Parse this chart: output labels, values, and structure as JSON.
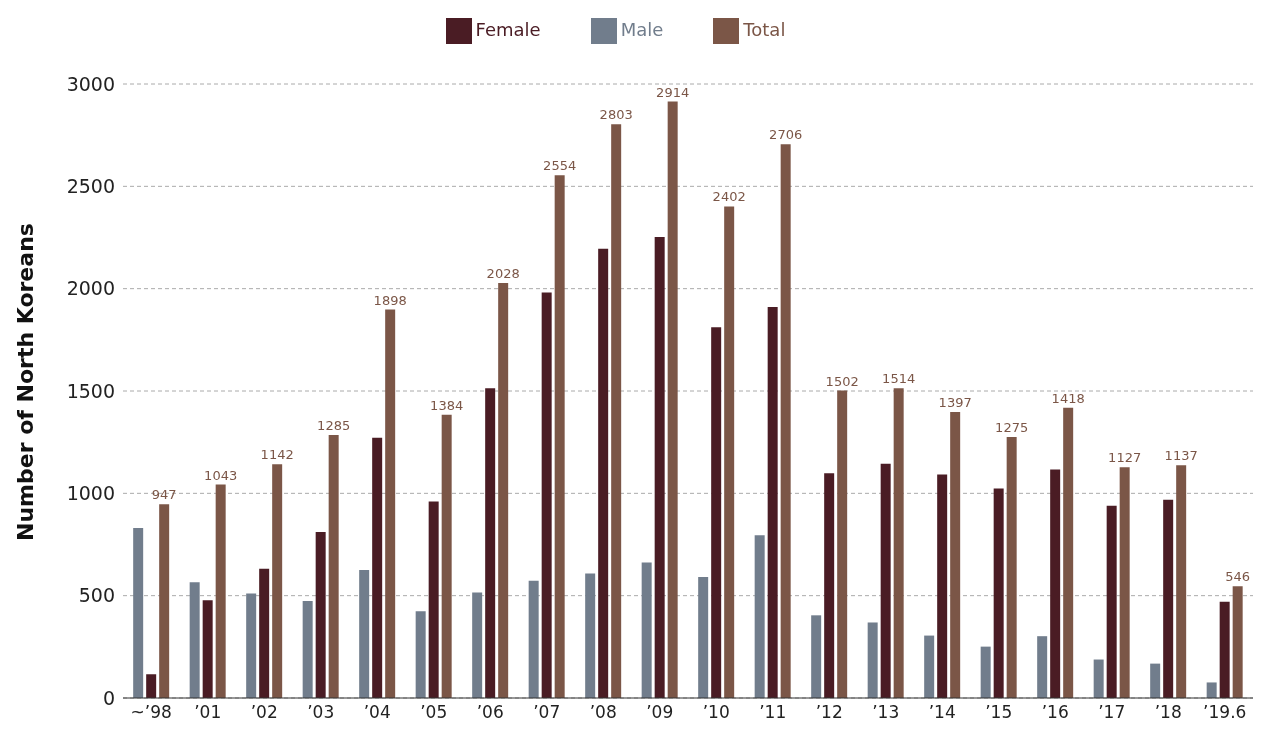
{
  "chart_data": {
    "type": "bar",
    "ylabel": "Number of North Koreans",
    "categories": [
      "~’98",
      "’01",
      "’02",
      "’03",
      "’04",
      "’05",
      "’06",
      "’07",
      "’08",
      "’09",
      "’10",
      "’11",
      "’12",
      "’13",
      "’14",
      "’15",
      "’16",
      "’17",
      "’18",
      "’19.6"
    ],
    "series": [
      {
        "name": "Male",
        "color": "#717d8c",
        "values": [
          831,
          565,
          510,
          474,
          626,
          424,
          515,
          573,
          608,
          662,
          591,
          795,
          404,
          369,
          305,
          251,
          302,
          188,
          168,
          76
        ]
      },
      {
        "name": "Female",
        "color": "#4a1c24",
        "values": [
          116,
          478,
          632,
          811,
          1272,
          960,
          1513,
          1981,
          2195,
          2252,
          1811,
          1911,
          1098,
          1145,
          1092,
          1024,
          1116,
          939,
          969,
          470
        ]
      },
      {
        "name": "Total",
        "color": "#7b5647",
        "values": [
          947,
          1043,
          1142,
          1285,
          1898,
          1384,
          2028,
          2554,
          2803,
          2914,
          2402,
          2706,
          1502,
          1514,
          1397,
          1275,
          1418,
          1127,
          1137,
          546
        ],
        "value_labels": [
          "947",
          "1043",
          "1142",
          "1285",
          "1898",
          "1384",
          "2028",
          "2554",
          "2803",
          "2914",
          "2402",
          "2706",
          "1502",
          "1514",
          "1397",
          "1275",
          "1418",
          "1127",
          "1137",
          "546"
        ]
      }
    ],
    "ylim": [
      0,
      3000
    ],
    "yticks": [
      0,
      500,
      1000,
      1500,
      2000,
      2500,
      3000
    ],
    "grid": "y",
    "legend": "top"
  }
}
